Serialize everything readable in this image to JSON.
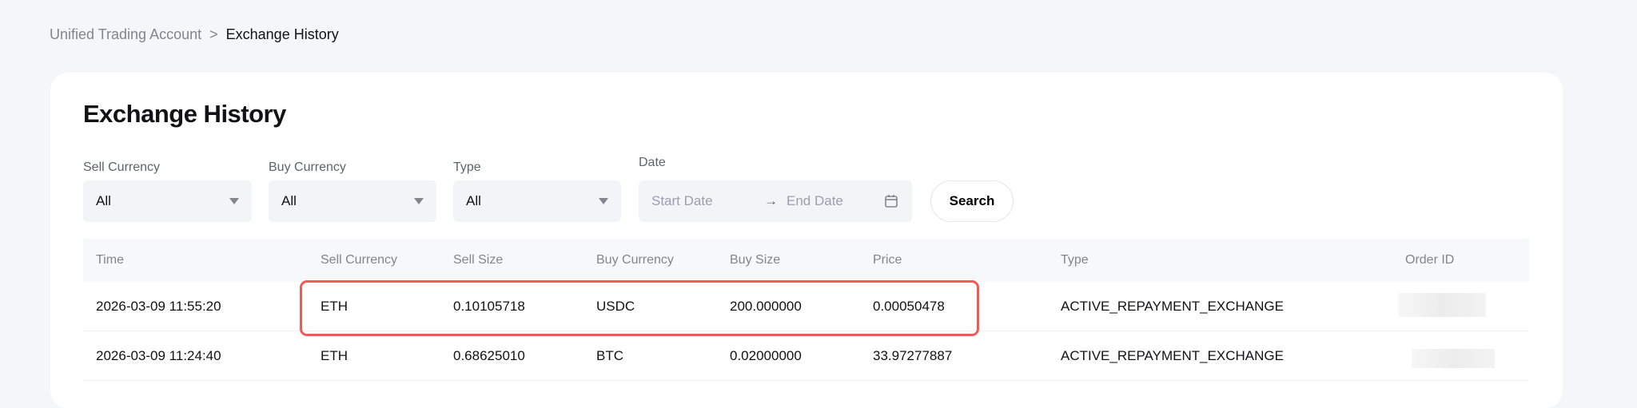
{
  "breadcrumb": {
    "parent": "Unified Trading Account",
    "separator": ">",
    "current": "Exchange History"
  },
  "title": "Exchange History",
  "filters": {
    "sell_currency": {
      "label": "Sell Currency",
      "value": "All"
    },
    "buy_currency": {
      "label": "Buy Currency",
      "value": "All"
    },
    "type": {
      "label": "Type",
      "value": "All"
    },
    "date": {
      "label": "Date",
      "start_placeholder": "Start Date",
      "arrow": "→",
      "end_placeholder": "End Date"
    },
    "search_label": "Search"
  },
  "table": {
    "columns": [
      "Time",
      "Sell Currency",
      "Sell Size",
      "Buy Currency",
      "Buy Size",
      "Price",
      "Type",
      "Order ID"
    ],
    "rows": [
      [
        "2026-03-09 11:55:20",
        "ETH",
        "0.10105718",
        "USDC",
        "200.000000",
        "0.00050478",
        "ACTIVE_REPAYMENT_EXCHANGE",
        ""
      ],
      [
        "2026-03-09 11:24:40",
        "ETH",
        "0.68625010",
        "BTC",
        "0.02000000",
        "33.97277887",
        "ACTIVE_REPAYMENT_EXCHANGE",
        ""
      ]
    ]
  },
  "colors": {
    "highlight": "#ef5b55"
  }
}
